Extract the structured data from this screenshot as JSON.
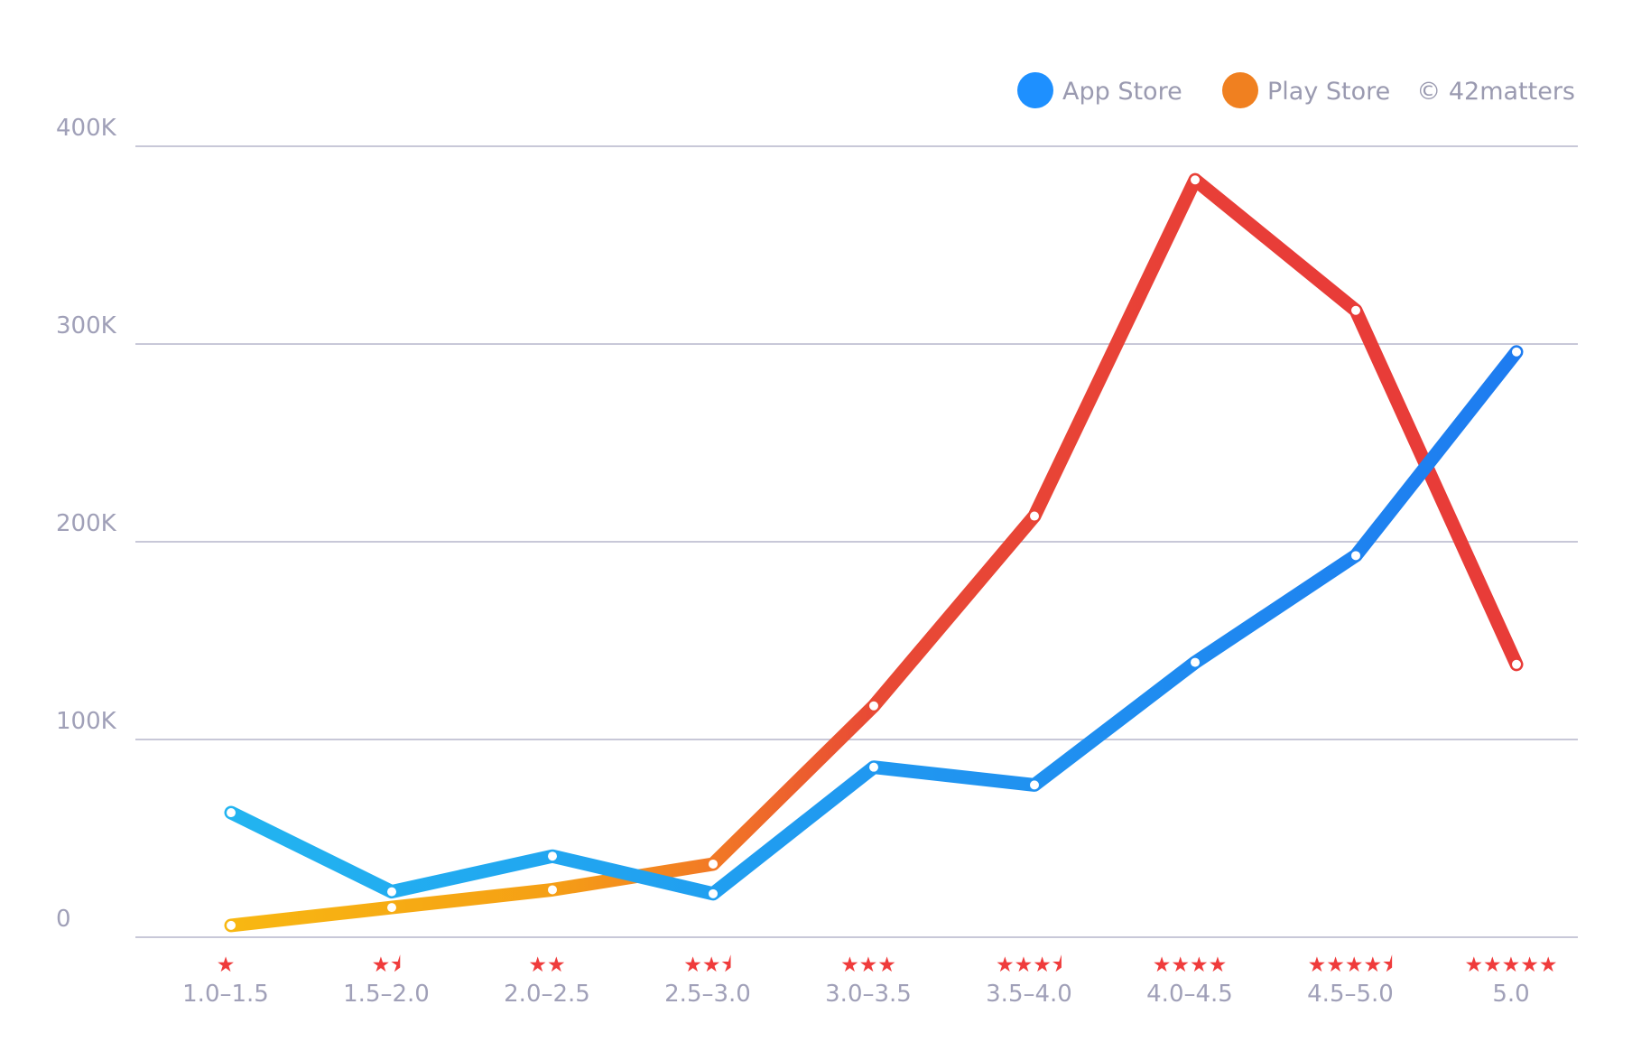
{
  "chart_data": {
    "type": "line",
    "categories": [
      "1.0–1.5",
      "1.5–2.0",
      "2.0–2.5",
      "2.5–3.0",
      "3.0–3.5",
      "3.5–4.0",
      "4.0–4.5",
      "4.5–5.0",
      "5.0"
    ],
    "category_stars": [
      "★",
      "★⯨",
      "★★",
      "★★⯨",
      "★★★",
      "★★★⯨",
      "★★★★",
      "★★★★⯨",
      "★★★★★"
    ],
    "series": [
      {
        "name": "App Store",
        "values": [
          63000,
          23000,
          41000,
          22000,
          86000,
          77000,
          139000,
          193000,
          296000
        ],
        "color": "#1e90ff",
        "gradient": [
          "#22b4f0",
          "#1e7cf0"
        ]
      },
      {
        "name": "Play Store",
        "values": [
          6000,
          15000,
          24000,
          37000,
          117000,
          213000,
          383000,
          317000,
          138000
        ],
        "color": "#f08020",
        "gradient": [
          "#f8b010",
          "#e83838"
        ]
      }
    ],
    "ylim": [
      0,
      400000
    ],
    "yticks": [
      0,
      100000,
      200000,
      300000,
      400000
    ],
    "ytick_labels": [
      "0",
      "100K",
      "200K",
      "300K",
      "400K"
    ],
    "grid": true,
    "legend_position": "top-right",
    "credit": "© 42matters",
    "star_color": "#ef3b3b",
    "grid_color": "#c8c8d8"
  }
}
